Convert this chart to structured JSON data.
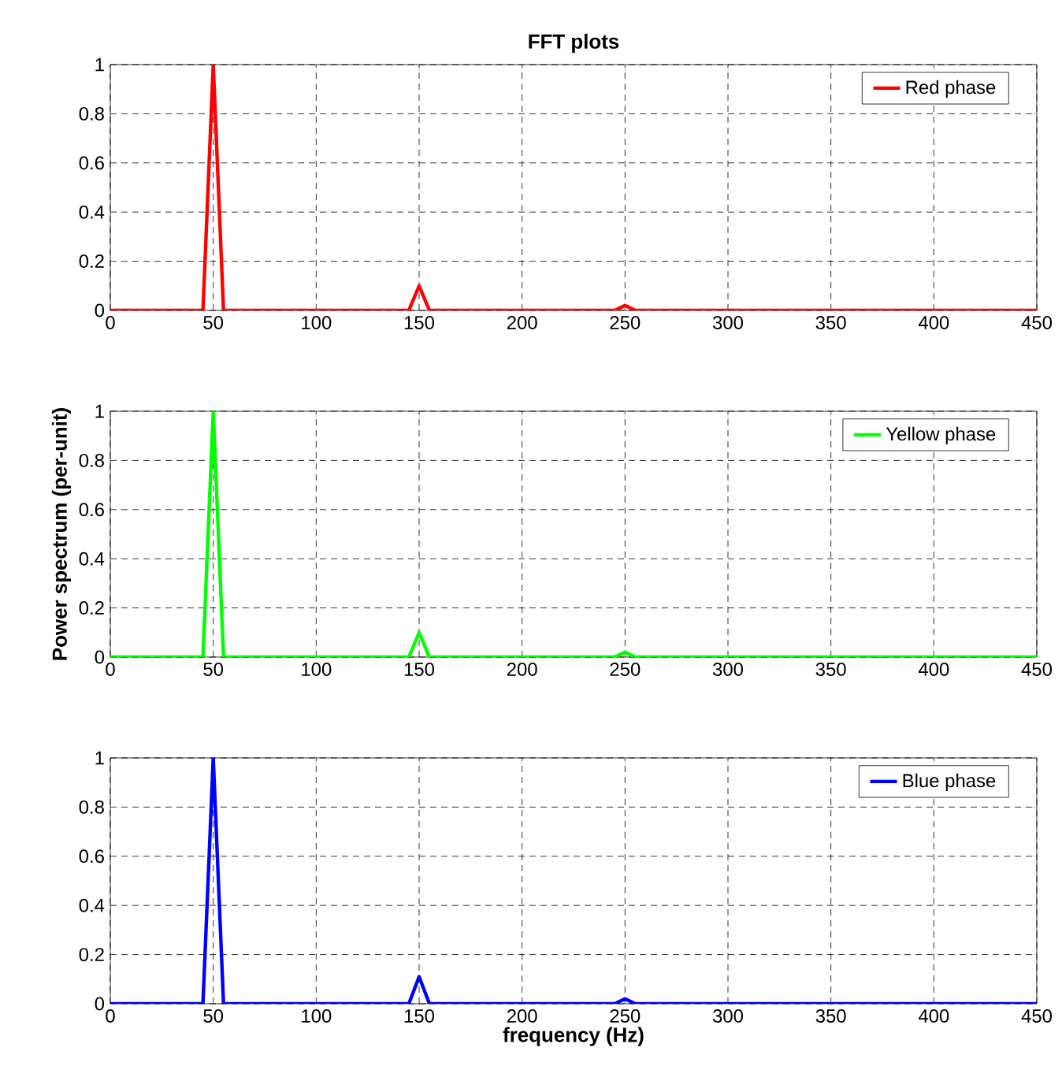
{
  "chart_data": [
    {
      "type": "line",
      "title": "FFT plots",
      "x": [
        0,
        45,
        50,
        55,
        145,
        150,
        155,
        245,
        250,
        255,
        450
      ],
      "series": [
        {
          "name": "Red phase",
          "color": "#ff0000",
          "values": [
            0,
            0,
            1,
            0,
            0,
            0.1,
            0,
            0,
            0.02,
            0,
            0
          ]
        }
      ],
      "xlim": [
        0,
        450
      ],
      "ylim": [
        0,
        1
      ],
      "xticks": [
        0,
        50,
        100,
        150,
        200,
        250,
        300,
        350,
        400,
        450
      ],
      "yticks": [
        0,
        0.2,
        0.4,
        0.6,
        0.8,
        1
      ],
      "grid": true,
      "legend": "top right"
    },
    {
      "type": "line",
      "ylabel": "Power spectrum (per-unit)",
      "x": [
        0,
        45,
        50,
        55,
        145,
        150,
        155,
        245,
        250,
        255,
        450
      ],
      "series": [
        {
          "name": "Yellow phase",
          "color": "#00ff00",
          "values": [
            0,
            0,
            1,
            0,
            0,
            0.1,
            0,
            0,
            0.02,
            0,
            0
          ]
        }
      ],
      "xlim": [
        0,
        450
      ],
      "ylim": [
        0,
        1
      ],
      "xticks": [
        0,
        50,
        100,
        150,
        200,
        250,
        300,
        350,
        400,
        450
      ],
      "yticks": [
        0,
        0.2,
        0.4,
        0.6,
        0.8,
        1
      ],
      "grid": true,
      "legend": "top right"
    },
    {
      "type": "line",
      "xlabel": "frequency (Hz)",
      "x": [
        0,
        45,
        50,
        55,
        145,
        150,
        155,
        245,
        250,
        255,
        450
      ],
      "series": [
        {
          "name": "Blue phase",
          "color": "#0000ff",
          "values": [
            0,
            0,
            1,
            0,
            0,
            0.11,
            0,
            0,
            0.02,
            0,
            0
          ]
        }
      ],
      "xlim": [
        0,
        450
      ],
      "ylim": [
        0,
        1
      ],
      "xticks": [
        0,
        50,
        100,
        150,
        200,
        250,
        300,
        350,
        400,
        450
      ],
      "yticks": [
        0,
        0.2,
        0.4,
        0.6,
        0.8,
        1
      ],
      "grid": true,
      "legend": "top right"
    }
  ]
}
